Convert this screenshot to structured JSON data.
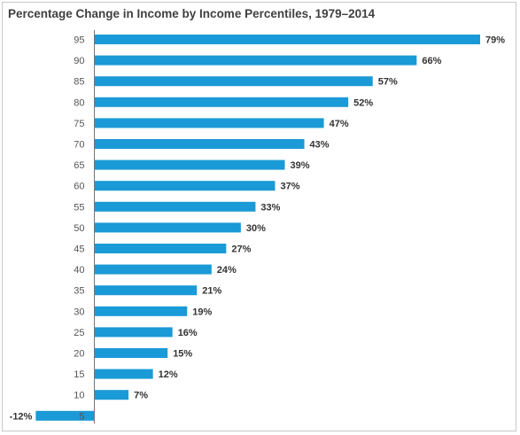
{
  "chart_data": {
    "type": "bar",
    "orientation": "horizontal",
    "title": "Percentage Change in Income by Income Percentiles, 1979–2014",
    "xlabel": "",
    "ylabel": "",
    "categories": [
      "95",
      "90",
      "85",
      "80",
      "75",
      "70",
      "65",
      "60",
      "55",
      "50",
      "45",
      "40",
      "35",
      "30",
      "25",
      "20",
      "15",
      "10",
      "5"
    ],
    "values": [
      79,
      66,
      57,
      52,
      47,
      43,
      39,
      37,
      33,
      30,
      27,
      24,
      21,
      19,
      16,
      15,
      12,
      7,
      -12
    ],
    "value_labels": [
      "79%",
      "66%",
      "57%",
      "52%",
      "47%",
      "43%",
      "39%",
      "37%",
      "33%",
      "30%",
      "27%",
      "24%",
      "21%",
      "19%",
      "16%",
      "15%",
      "12%",
      "7%",
      "-12%"
    ],
    "xlim": [
      -12,
      79
    ],
    "bar_color": "#1a9ad6",
    "grid": false,
    "legend": "none"
  }
}
